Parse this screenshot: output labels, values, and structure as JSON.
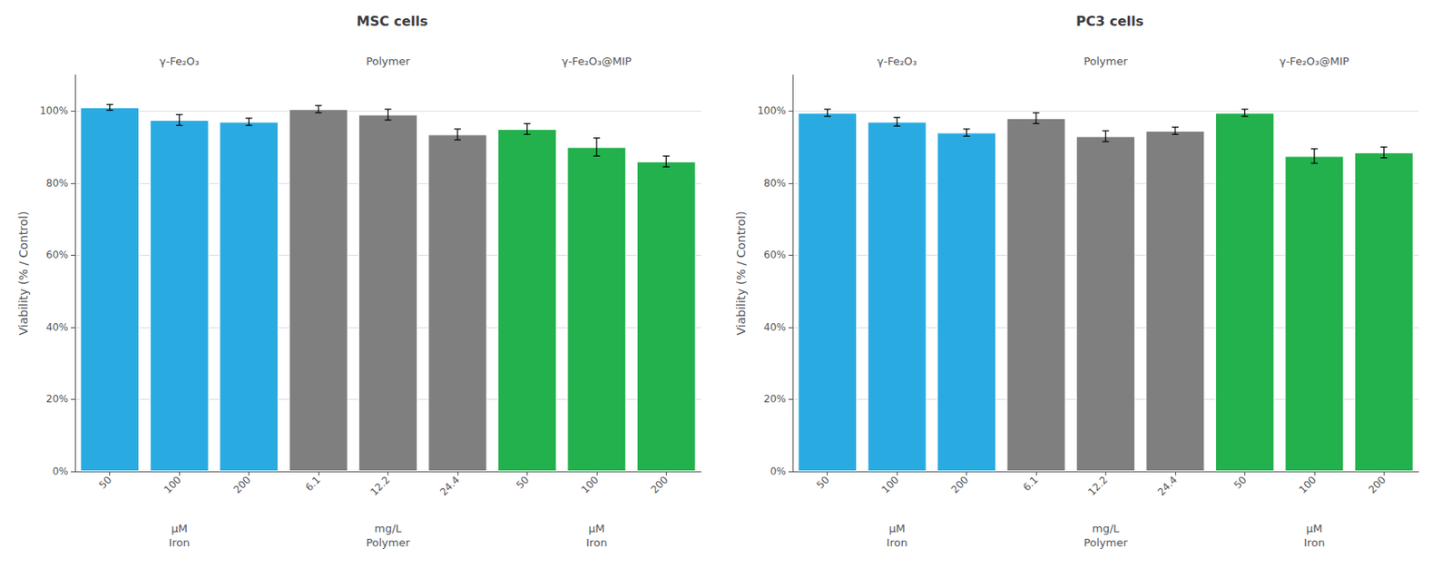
{
  "chart_data": [
    {
      "type": "bar",
      "title": "MSC cells",
      "ylabel": "Viability (% / Control)",
      "ylim": [
        0,
        110
      ],
      "yticks": [
        {
          "value": 0,
          "label": "0%"
        },
        {
          "value": 20,
          "label": "20%"
        },
        {
          "value": 40,
          "label": "40%"
        },
        {
          "value": 60,
          "label": "60%"
        },
        {
          "value": 80,
          "label": "80%"
        },
        {
          "value": 100,
          "label": "100%"
        }
      ],
      "grid": true,
      "groups": [
        {
          "label": "γ-Fe₂O₃",
          "unit": [
            "μM",
            "Iron"
          ],
          "color": "#29ABE2",
          "categories": [
            "50",
            "100",
            "200"
          ],
          "values": [
            101.0,
            97.5,
            97.0
          ],
          "errors": [
            0.8,
            1.5,
            1.0
          ]
        },
        {
          "label": "Polymer",
          "unit": [
            "mg/L",
            "Polymer"
          ],
          "color": "#7F7F7F",
          "categories": [
            "6.1",
            "12.2",
            "24.4"
          ],
          "values": [
            100.5,
            99.0,
            93.5
          ],
          "errors": [
            1.0,
            1.5,
            1.5
          ]
        },
        {
          "label": "γ-Fe₂O₃@MIP",
          "unit": [
            "μM",
            "Iron"
          ],
          "color": "#22B14C",
          "categories": [
            "50",
            "100",
            "200"
          ],
          "values": [
            95.0,
            90.0,
            86.0
          ],
          "errors": [
            1.5,
            2.5,
            1.5
          ]
        }
      ]
    },
    {
      "type": "bar",
      "title": "PC3 cells",
      "ylabel": "Viability (% / Control)",
      "ylim": [
        0,
        110
      ],
      "yticks": [
        {
          "value": 0,
          "label": "0%"
        },
        {
          "value": 20,
          "label": "20%"
        },
        {
          "value": 40,
          "label": "40%"
        },
        {
          "value": 60,
          "label": "60%"
        },
        {
          "value": 80,
          "label": "80%"
        },
        {
          "value": 100,
          "label": "100%"
        }
      ],
      "grid": true,
      "groups": [
        {
          "label": "γ-Fe₂O₃",
          "unit": [
            "μM",
            "Iron"
          ],
          "color": "#29ABE2",
          "categories": [
            "50",
            "100",
            "200"
          ],
          "values": [
            99.5,
            97.0,
            94.0
          ],
          "errors": [
            1.0,
            1.2,
            1.0
          ]
        },
        {
          "label": "Polymer",
          "unit": [
            "mg/L",
            "Polymer"
          ],
          "color": "#7F7F7F",
          "categories": [
            "6.1",
            "12.2",
            "24.4"
          ],
          "values": [
            98.0,
            93.0,
            94.5
          ],
          "errors": [
            1.5,
            1.5,
            1.0
          ]
        },
        {
          "label": "γ-Fe₂O₃@MIP",
          "unit": [
            "μM",
            "Iron"
          ],
          "color": "#22B14C",
          "categories": [
            "50",
            "100",
            "200"
          ],
          "values": [
            99.5,
            87.5,
            88.5
          ],
          "errors": [
            1.0,
            2.0,
            1.5
          ]
        }
      ]
    }
  ]
}
